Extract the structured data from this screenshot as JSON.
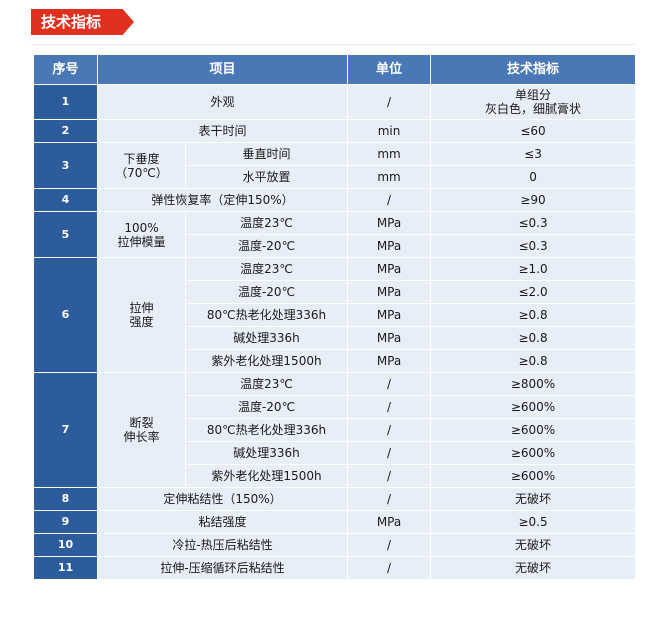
{
  "section_title": "技术指标",
  "table": {
    "headers": {
      "no": "序号",
      "item": "项目",
      "unit": "单位",
      "spec": "技术指标"
    },
    "rows": [
      {
        "no": "1",
        "item": "外观",
        "unit": "/",
        "spec_line1": "单组分",
        "spec_line2": "灰白色，细腻膏状"
      },
      {
        "no": "2",
        "item": "表干时间",
        "unit": "min",
        "spec": "≤60"
      },
      {
        "no": "3",
        "group_line1": "下垂度",
        "group_line2": "（70℃）",
        "subs": [
          {
            "item": "垂直时间",
            "unit": "mm",
            "spec": "≤3"
          },
          {
            "item": "水平放置",
            "unit": "mm",
            "spec": "0"
          }
        ]
      },
      {
        "no": "4",
        "item": "弹性恢复率（定伸150%）",
        "unit": "/",
        "spec": "≥90"
      },
      {
        "no": "5",
        "group_line1": "100%",
        "group_line2": "拉伸模量",
        "subs": [
          {
            "item": "温度23℃",
            "unit": "MPa",
            "spec": "≤0.3"
          },
          {
            "item": "温度-20℃",
            "unit": "MPa",
            "spec": "≤0.3"
          }
        ]
      },
      {
        "no": "6",
        "group_line1": "拉伸",
        "group_line2": "强度",
        "subs": [
          {
            "item": "温度23℃",
            "unit": "MPa",
            "spec": "≥1.0"
          },
          {
            "item": "温度-20℃",
            "unit": "MPa",
            "spec": "≤2.0"
          },
          {
            "item": "80℃热老化处理336h",
            "unit": "MPa",
            "spec": "≥0.8"
          },
          {
            "item": "碱处理336h",
            "unit": "MPa",
            "spec": "≥0.8"
          },
          {
            "item": "紫外老化处理1500h",
            "unit": "MPa",
            "spec": "≥0.8"
          }
        ]
      },
      {
        "no": "7",
        "group_line1": "断裂",
        "group_line2": "伸长率",
        "subs": [
          {
            "item": "温度23℃",
            "unit": "/",
            "spec": "≥800%"
          },
          {
            "item": "温度-20℃",
            "unit": "/",
            "spec": "≥600%"
          },
          {
            "item": "80℃热老化处理336h",
            "unit": "/",
            "spec": "≥600%"
          },
          {
            "item": "碱处理336h",
            "unit": "/",
            "spec": "≥600%"
          },
          {
            "item": "紫外老化处理1500h",
            "unit": "/",
            "spec": "≥600%"
          }
        ]
      },
      {
        "no": "8",
        "item": "定伸粘结性（150%）",
        "unit": "/",
        "spec": "无破坏"
      },
      {
        "no": "9",
        "item": "粘结强度",
        "unit": "MPa",
        "spec": "≥0.5"
      },
      {
        "no": "10",
        "item": "冷拉-热压后粘结性",
        "unit": "/",
        "spec": "无破坏"
      },
      {
        "no": "11",
        "item": "拉伸-压缩循环后粘结性",
        "unit": "/",
        "spec": "无破坏"
      }
    ]
  }
}
